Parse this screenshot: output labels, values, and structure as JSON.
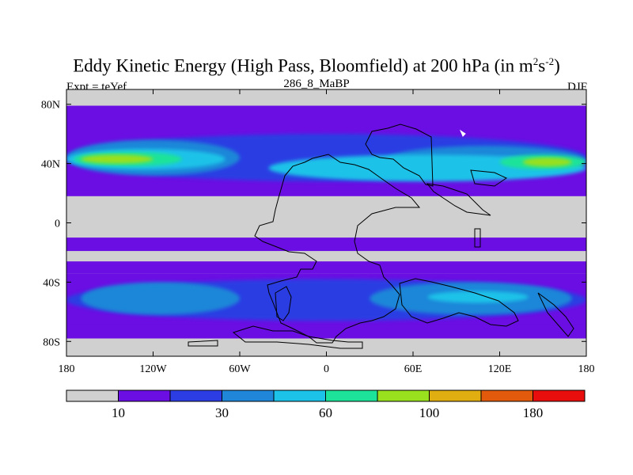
{
  "title": {
    "main": "Eddy Kinetic Energy (High Pass, Bloomfield) at 200 hPa (in m",
    "unit_base": "s",
    "sup1": "2",
    "sup2": "-2",
    "close": ")"
  },
  "subtitle_left": "Expt = teYef",
  "subtitle_center": "286_8_MaBP",
  "subtitle_right": "DJF",
  "colors": {
    "c0": "#d0d0d0",
    "c1": "#6a0ee3",
    "c2": "#2c3ee3",
    "c3": "#1f86d8",
    "c4": "#1cc2e8",
    "c5": "#1de39a",
    "c6": "#99e01e",
    "c7": "#e0ae10",
    "c8": "#e25a0c",
    "c9": "#e80e0e"
  },
  "chart_data": {
    "type": "heatmap",
    "variable": "Eddy kinetic energy",
    "units": "m2 s-2",
    "level": "200 hPa",
    "season": "DJF",
    "xlim": [
      -180,
      180
    ],
    "ylim": [
      -90,
      90
    ],
    "x_ticks": [
      {
        "value": -180,
        "label": "180"
      },
      {
        "value": -120,
        "label": "120W"
      },
      {
        "value": -60,
        "label": "60W"
      },
      {
        "value": 0,
        "label": "0"
      },
      {
        "value": 60,
        "label": "60E"
      },
      {
        "value": 120,
        "label": "120E"
      },
      {
        "value": 180,
        "label": "180"
      }
    ],
    "y_ticks": [
      {
        "value": 80,
        "label": "80N"
      },
      {
        "value": 40,
        "label": "40N"
      },
      {
        "value": 0,
        "label": "0"
      },
      {
        "value": -40,
        "label": "40S"
      },
      {
        "value": -80,
        "label": "80S"
      }
    ],
    "contour_levels": [
      10,
      20,
      30,
      40,
      60,
      80,
      100,
      140,
      180
    ],
    "colorbar_labels": [
      {
        "after_bin": 1,
        "label": "10"
      },
      {
        "after_bin": 3,
        "label": "30"
      },
      {
        "after_bin": 5,
        "label": "60"
      },
      {
        "after_bin": 7,
        "label": "100"
      },
      {
        "after_bin": 9,
        "label": "180"
      }
    ],
    "bands": [
      {
        "lat": [
          79,
          90
        ],
        "bin": 0
      },
      {
        "lat": [
          67,
          79
        ],
        "bin": 1
      },
      {
        "lat": [
          -10,
          18
        ],
        "bin": 0
      },
      {
        "lat": [
          -19,
          -10
        ],
        "bin": 1
      },
      {
        "lat": [
          -40,
          -19
        ],
        "bin": 0
      },
      {
        "lat": [
          -34,
          -26
        ],
        "bin": 1
      },
      {
        "lat": [
          -69,
          -34
        ],
        "bin": 1
      },
      {
        "lat": [
          -78,
          -69
        ],
        "bin": 1
      },
      {
        "lat": [
          -90,
          -78
        ],
        "bin": 0
      }
    ],
    "regions": [
      {
        "name": "nh-jet-2",
        "bin": 2,
        "lon": [
          -180,
          180
        ],
        "lat": [
          28,
          60
        ]
      },
      {
        "name": "nh-jet-3-west",
        "bin": 3,
        "lon": [
          -180,
          -60
        ],
        "lat": [
          32,
          56
        ]
      },
      {
        "name": "nh-jet-4-west",
        "bin": 4,
        "lon": [
          -180,
          -70
        ],
        "lat": [
          36,
          50
        ]
      },
      {
        "name": "nh-jet-5-west",
        "bin": 5,
        "lon": [
          -175,
          -100
        ],
        "lat": [
          38,
          48
        ]
      },
      {
        "name": "nh-jet-6-west",
        "bin": 6,
        "lon": [
          -170,
          -120
        ],
        "lat": [
          40,
          46
        ]
      },
      {
        "name": "nh-jet-3-east",
        "bin": 3,
        "lon": [
          40,
          180
        ],
        "lat": [
          32,
          52
        ]
      },
      {
        "name": "nh-jet-4-east",
        "bin": 4,
        "lon": [
          -40,
          180
        ],
        "lat": [
          28,
          46
        ]
      },
      {
        "name": "nh-jet-5-east",
        "bin": 5,
        "lon": [
          120,
          180
        ],
        "lat": [
          36,
          46
        ]
      },
      {
        "name": "nh-jet-6-east",
        "bin": 6,
        "lon": [
          136,
          170
        ],
        "lat": [
          38,
          44
        ]
      },
      {
        "name": "sh-jet-2",
        "bin": 2,
        "lon": [
          -180,
          180
        ],
        "lat": [
          -66,
          -38
        ]
      },
      {
        "name": "sh-jet-3-west",
        "bin": 3,
        "lon": [
          -170,
          -60
        ],
        "lat": [
          -62,
          -40
        ]
      },
      {
        "name": "sh-jet-3-east",
        "bin": 3,
        "lon": [
          30,
          170
        ],
        "lat": [
          -62,
          -40
        ]
      },
      {
        "name": "sh-jet-4-east",
        "bin": 4,
        "lon": [
          70,
          140
        ],
        "lat": [
          -54,
          -46
        ]
      }
    ],
    "grid": false,
    "coastlines": true
  }
}
